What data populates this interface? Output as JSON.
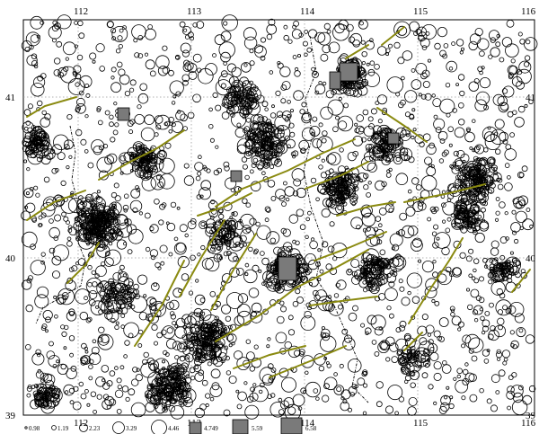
{
  "map": {
    "lon_range": [
      111.5,
      116
    ],
    "lat_range": [
      39,
      41.2
    ],
    "grid": true,
    "top_ticks": [
      "112",
      "113",
      "114",
      "115",
      "116"
    ],
    "bottom_ticks": [
      "112",
      "113",
      "114",
      "115",
      "116"
    ],
    "left_ticks": [
      "41",
      "40",
      "39"
    ],
    "right_ticks": [
      "41",
      "40",
      "39"
    ]
  },
  "legend": {
    "items": [
      "0.98",
      "1.19",
      "2.23",
      "3.29",
      "4.46",
      "4.749",
      "5.59",
      "6.58"
    ]
  },
  "colors": {
    "faults": "#8a8a10",
    "large_events": "#7a7a7a",
    "events": "#000000"
  },
  "icons": {
    "event_marker": "open-circle-icon",
    "large_event_marker": "filled-square-icon"
  }
}
